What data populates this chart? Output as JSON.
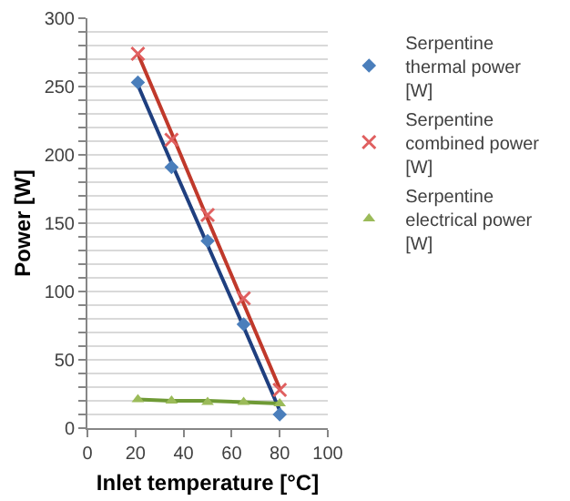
{
  "chart_data": {
    "type": "scatter",
    "xlabel": "Inlet temperature [°C]",
    "ylabel": "Power [W]",
    "xlim": [
      0,
      100
    ],
    "xticks": [
      0,
      20,
      40,
      60,
      80,
      100
    ],
    "ylim": [
      0,
      300
    ],
    "yticks": [
      0,
      {
        "value": 10,
        "label": null
      },
      {
        "value": 20,
        "label": null
      },
      {
        "value": 30,
        "label": null
      },
      {
        "value": 40,
        "label": null
      },
      50,
      {
        "value": 60,
        "label": null
      },
      {
        "value": 70,
        "label": null
      },
      {
        "value": 80,
        "label": null
      },
      {
        "value": 90,
        "label": null
      },
      100,
      {
        "value": 110,
        "label": null
      },
      {
        "value": 120,
        "label": null
      },
      {
        "value": 130,
        "label": null
      },
      {
        "value": 140,
        "label": null
      },
      150,
      {
        "value": 160,
        "label": null
      },
      {
        "value": 170,
        "label": null
      },
      {
        "value": 180,
        "label": null
      },
      {
        "value": 190,
        "label": null
      },
      200,
      {
        "value": 210,
        "label": null
      },
      {
        "value": 220,
        "label": null
      },
      {
        "value": 230,
        "label": null
      },
      {
        "value": 240,
        "label": null
      },
      250,
      {
        "value": 260,
        "label": null
      },
      {
        "value": 270,
        "label": null
      },
      {
        "value": 280,
        "label": null
      },
      {
        "value": 290,
        "label": null
      },
      300
    ],
    "grid": "y",
    "legend": "right",
    "x": [
      21,
      35,
      50,
      65,
      80
    ],
    "series": [
      {
        "type": "line",
        "color": "#1f3f7f",
        "values": [
          251,
          194,
          134,
          74,
          13
        ]
      },
      {
        "type": "line",
        "color": "#c0392b",
        "values": [
          274,
          216,
          153,
          91,
          29
        ]
      },
      {
        "type": "line",
        "color": "#6f9a35",
        "values": [
          21,
          20,
          20,
          19,
          18
        ]
      },
      {
        "name": "Serpentine thermal power [W]",
        "color": "#4a7ebb",
        "marker": "diamond",
        "values": [
          253,
          191,
          137,
          76,
          10
        ]
      },
      {
        "name": "Serpentine combined power [W]",
        "color": "#e06060",
        "marker": "cross",
        "values": [
          274,
          211,
          156,
          95,
          28
        ]
      },
      {
        "name": "Serpentine electrical power [W]",
        "color": "#9bbb59",
        "marker": "triangle",
        "values": [
          21,
          20,
          19,
          19,
          18
        ]
      }
    ]
  }
}
